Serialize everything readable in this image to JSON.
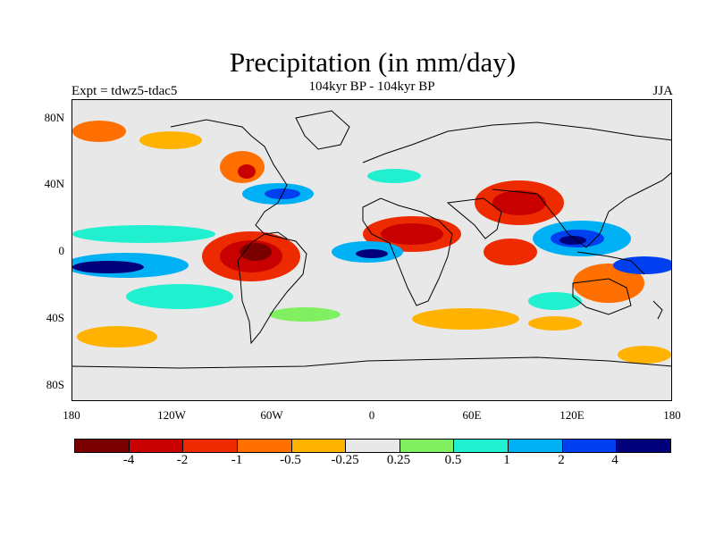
{
  "title": "Precipitation (in mm/day)",
  "subtitle": "104kyr BP - 104kyr BP",
  "experiment": "Expt = tdwz5-tdac5",
  "season": "JJA",
  "axes": {
    "y_labels": [
      "80N",
      "40N",
      "0",
      "40S",
      "80S"
    ],
    "x_labels": [
      "180",
      "120W",
      "60W",
      "0",
      "60E",
      "120E",
      "180"
    ]
  },
  "colorbar": {
    "colors": [
      "#7a0000",
      "#c80000",
      "#ee2a00",
      "#ff7000",
      "#ffb300",
      "#e8e8e8",
      "#80f060",
      "#20f0d0",
      "#00b0f5",
      "#0040f0",
      "#00007a"
    ],
    "labels": [
      "-4",
      "-2",
      "-1",
      "-0.5",
      "-0.25",
      "0.25",
      "0.5",
      "1",
      "2",
      "4"
    ]
  }
}
